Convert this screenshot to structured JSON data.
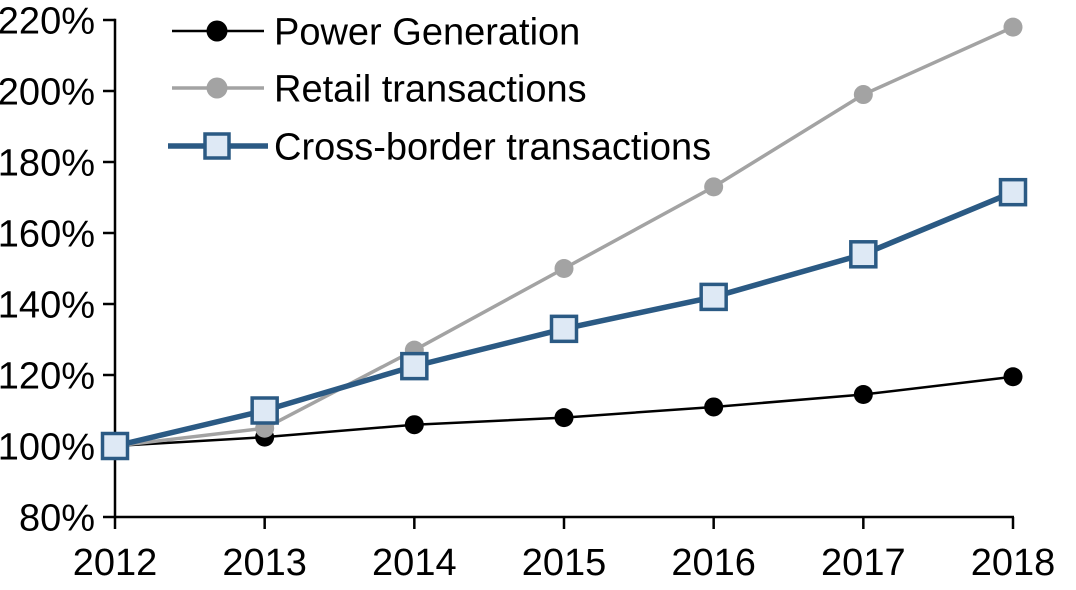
{
  "chart_data": {
    "type": "line",
    "title": "",
    "xlabel": "",
    "ylabel": "",
    "grid": false,
    "legend_position": "top-left-inside",
    "x": [
      2012,
      2013,
      2014,
      2015,
      2016,
      2017,
      2018
    ],
    "x_tick_labels": [
      "2012",
      "2013",
      "2014",
      "2015",
      "2016",
      "2017",
      "2018"
    ],
    "y_axis": {
      "min": 80,
      "max": 220,
      "step": 20,
      "tick_suffix": "%",
      "tick_labels": [
        "80%",
        "100%",
        "120%",
        "140%",
        "160%",
        "180%",
        "200%",
        "220%"
      ]
    },
    "series": [
      {
        "name": "Power Generation",
        "color": "#000000",
        "marker": "circle",
        "marker_fill": "#000000",
        "line_width": 2.5,
        "values": [
          100,
          102.5,
          106,
          108,
          111,
          114.5,
          119.5
        ]
      },
      {
        "name": "Retail transactions",
        "color": "#A3A3A3",
        "marker": "circle",
        "marker_fill": "#A3A3A3",
        "line_width": 3.5,
        "values": [
          100,
          105,
          127,
          150,
          173,
          199,
          218
        ]
      },
      {
        "name": "Cross-border transactions",
        "color": "#2B5A84",
        "marker": "square",
        "marker_fill": "#DEE9F5",
        "line_width": 5.5,
        "values": [
          100,
          110,
          122.5,
          133,
          142,
          154,
          171.5
        ]
      }
    ]
  },
  "colors": {
    "background": "#FFFFFF",
    "axis": "#000000",
    "text": "#000000"
  }
}
